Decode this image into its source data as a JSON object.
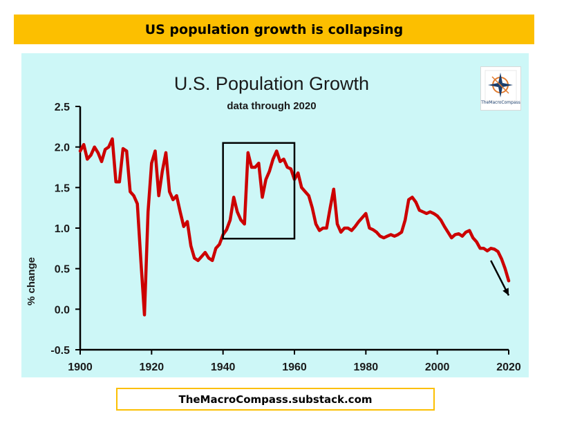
{
  "banner": {
    "title": "US population growth is collapsing"
  },
  "footer": {
    "text": "TheMacroCompass.substack.com"
  },
  "logo": {
    "text": "TheMacroCompass",
    "icon": "compass-rose-icon"
  },
  "chart_data": {
    "type": "line",
    "title": "U.S. Population Growth",
    "subtitle": "data through 2020",
    "xlabel": "",
    "ylabel": "% change",
    "xlim": [
      1900,
      2020
    ],
    "ylim": [
      -0.5,
      2.5
    ],
    "x_ticks": [
      "1900",
      "1920",
      "1940",
      "1960",
      "1980",
      "2000",
      "2020"
    ],
    "y_ticks": [
      "2.5",
      "2.0",
      "1.5",
      "1.0",
      "0.5",
      "0.0",
      "-0.5"
    ],
    "grid": false,
    "line_color": "#cc0000",
    "highlight_box": {
      "x": [
        1940,
        1960
      ],
      "y": [
        0.87,
        2.05
      ]
    },
    "trend_arrow": {
      "from": [
        2015,
        0.6
      ],
      "to": [
        2020,
        0.17
      ]
    },
    "series": [
      {
        "x": [
          1900,
          1901,
          1902,
          1903,
          1904,
          1905,
          1906,
          1907,
          1908,
          1909,
          1910,
          1911,
          1912,
          1913,
          1914,
          1915,
          1916,
          1917,
          1918,
          1919,
          1920,
          1921,
          1922,
          1923,
          1924,
          1925,
          1926,
          1927,
          1928,
          1929,
          1930,
          1931,
          1932,
          1933,
          1934,
          1935,
          1936,
          1937,
          1938,
          1939,
          1940,
          1941,
          1942,
          1943,
          1944,
          1945,
          1946,
          1947,
          1948,
          1949,
          1950,
          1951,
          1952,
          1953,
          1954,
          1955,
          1956,
          1957,
          1958,
          1959,
          1960,
          1961,
          1962,
          1963,
          1964,
          1965,
          1966,
          1967,
          1968,
          1969,
          1970,
          1971,
          1972,
          1973,
          1974,
          1975,
          1976,
          1977,
          1978,
          1979,
          1980,
          1981,
          1982,
          1983,
          1984,
          1985,
          1986,
          1987,
          1988,
          1989,
          1990,
          1991,
          1992,
          1993,
          1994,
          1995,
          1996,
          1997,
          1998,
          1999,
          2000,
          2001,
          2002,
          2003,
          2004,
          2005,
          2006,
          2007,
          2008,
          2009,
          2010,
          2011,
          2012,
          2013,
          2014,
          2015,
          2016,
          2017,
          2018,
          2019,
          2020
        ],
        "values": [
          1.95,
          2.03,
          1.85,
          1.9,
          2.0,
          1.93,
          1.82,
          1.97,
          2.0,
          2.1,
          1.57,
          1.57,
          1.98,
          1.95,
          1.45,
          1.4,
          1.3,
          0.6,
          -0.07,
          1.2,
          1.8,
          1.95,
          1.4,
          1.7,
          1.93,
          1.45,
          1.35,
          1.4,
          1.2,
          1.02,
          1.08,
          0.78,
          0.63,
          0.6,
          0.65,
          0.7,
          0.63,
          0.6,
          0.75,
          0.8,
          0.92,
          0.98,
          1.1,
          1.38,
          1.2,
          1.1,
          1.05,
          1.93,
          1.75,
          1.75,
          1.8,
          1.38,
          1.6,
          1.7,
          1.85,
          1.95,
          1.82,
          1.85,
          1.75,
          1.73,
          1.6,
          1.68,
          1.5,
          1.45,
          1.4,
          1.25,
          1.05,
          0.97,
          1.0,
          1.0,
          1.25,
          1.48,
          1.05,
          0.95,
          1.0,
          1.0,
          0.97,
          1.02,
          1.08,
          1.13,
          1.18,
          1.0,
          0.98,
          0.95,
          0.9,
          0.88,
          0.9,
          0.92,
          0.9,
          0.92,
          0.95,
          1.1,
          1.35,
          1.38,
          1.32,
          1.22,
          1.2,
          1.18,
          1.2,
          1.18,
          1.15,
          1.1,
          1.02,
          0.95,
          0.88,
          0.92,
          0.93,
          0.9,
          0.95,
          0.97,
          0.88,
          0.83,
          0.75,
          0.75,
          0.72,
          0.75,
          0.74,
          0.71,
          0.62,
          0.5,
          0.35
        ]
      }
    ]
  }
}
